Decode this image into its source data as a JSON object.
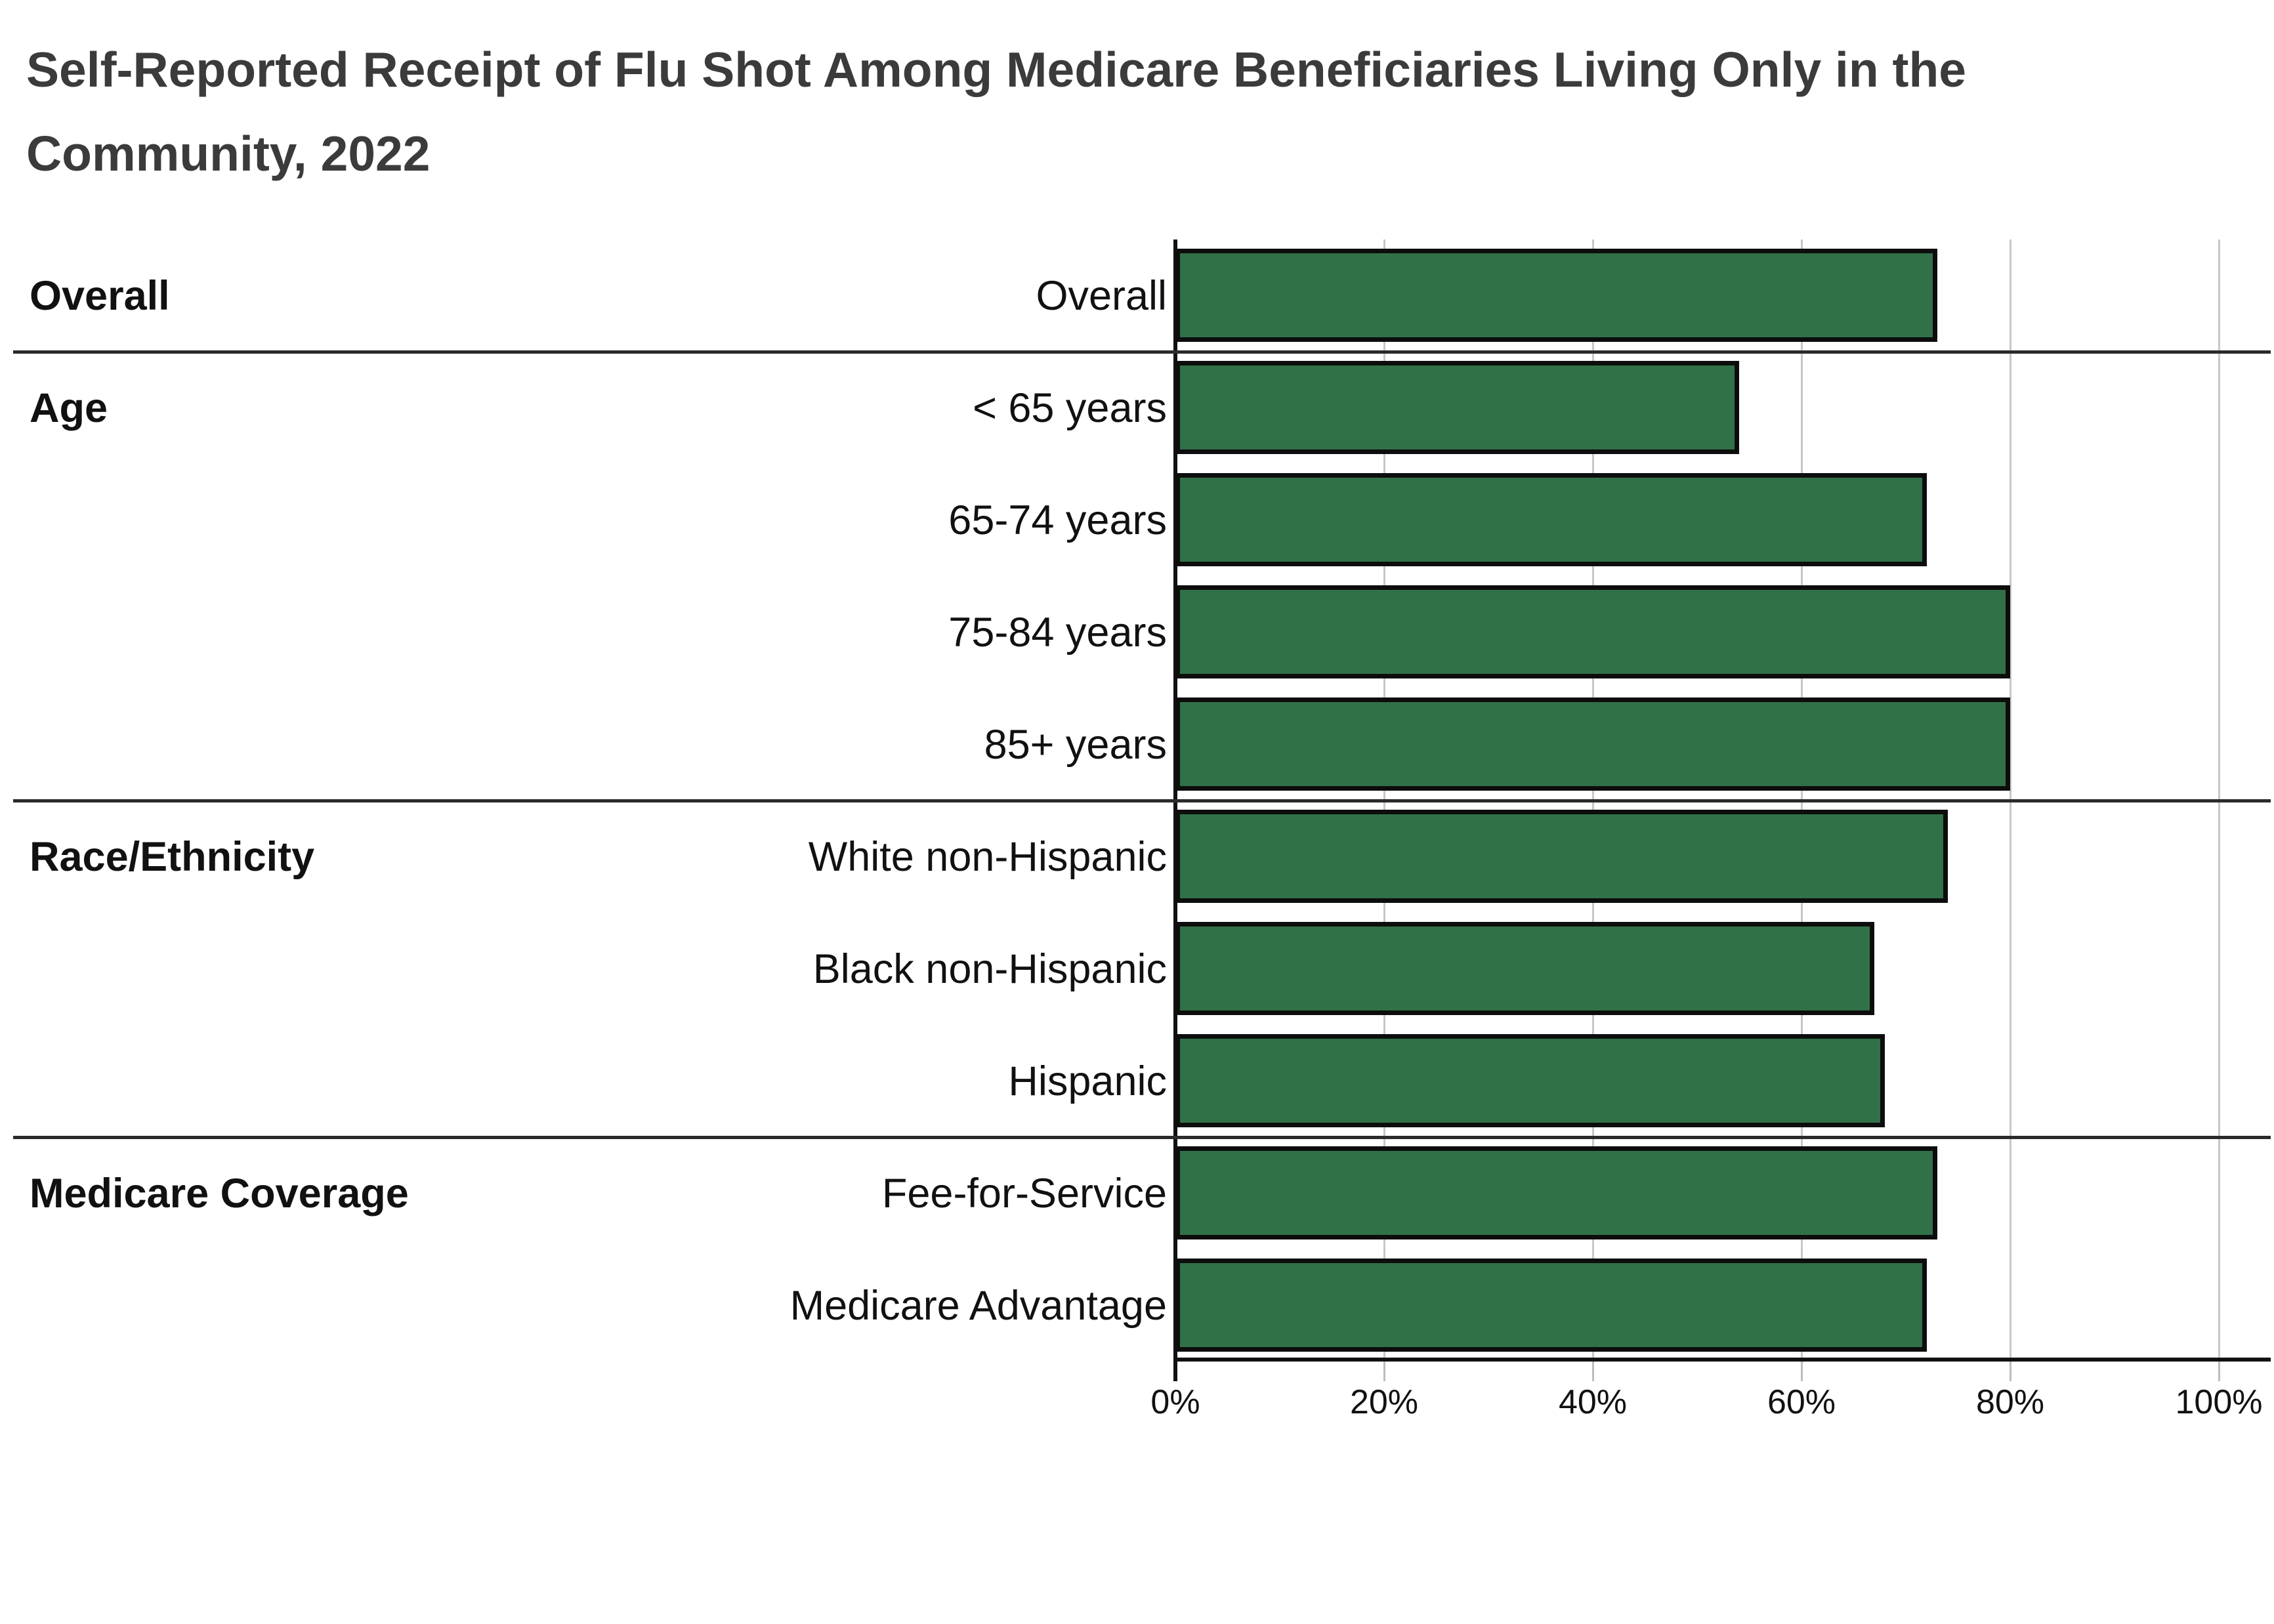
{
  "title": {
    "line1": "Self-Reported Receipt of Flu Shot Among Medicare Beneficiaries Living Only in the",
    "line2": "Community, 2022"
  },
  "colors": {
    "bar_fill": "#317148",
    "bar_border": "#0d0d0d",
    "gridline": "#c7c7c7",
    "tick": "#bdbdbd",
    "axis": "#111111",
    "separator": "#2b2b2b",
    "title_text": "#3b3b3b",
    "label_text": "#111111",
    "background": "#ffffff"
  },
  "chart_data": {
    "type": "bar",
    "orientation": "horizontal",
    "title": "Self-Reported Receipt of Flu Shot Among Medicare Beneficiaries Living Only in the Community, 2022",
    "unit": "percent",
    "xlim": [
      0,
      100
    ],
    "x_tick_values": [
      0,
      20,
      40,
      60,
      80,
      100
    ],
    "x_tick_labels": [
      "0%",
      "20%",
      "40%",
      "60%",
      "80%",
      "100%"
    ],
    "grid": true,
    "legend": false,
    "groups": [
      {
        "label": "Overall",
        "rows": [
          {
            "label": "Overall",
            "value": 73
          }
        ]
      },
      {
        "label": "Age",
        "rows": [
          {
            "label": "< 65 years",
            "value": 54
          },
          {
            "label": "65-74 years",
            "value": 72
          },
          {
            "label": "75-84 years",
            "value": 80
          },
          {
            "label": "85+ years",
            "value": 80
          }
        ]
      },
      {
        "label": "Race/Ethnicity",
        "rows": [
          {
            "label": "White non-Hispanic",
            "value": 74
          },
          {
            "label": "Black non-Hispanic",
            "value": 67
          },
          {
            "label": "Hispanic",
            "value": 68
          }
        ]
      },
      {
        "label": "Medicare Coverage",
        "rows": [
          {
            "label": "Fee-for-Service",
            "value": 73
          },
          {
            "label": "Medicare Advantage",
            "value": 72
          }
        ]
      }
    ]
  }
}
